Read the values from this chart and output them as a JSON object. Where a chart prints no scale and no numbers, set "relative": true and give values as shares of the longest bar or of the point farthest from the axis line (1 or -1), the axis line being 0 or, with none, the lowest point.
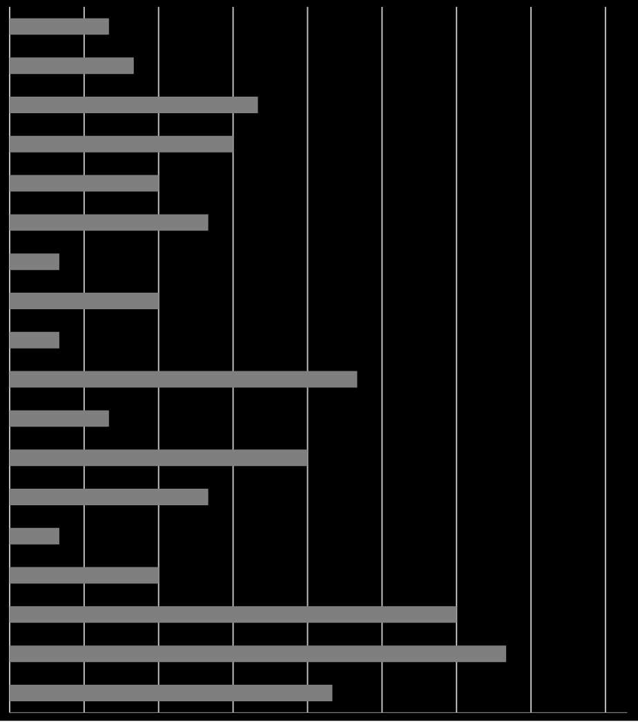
{
  "chart_data": {
    "type": "bar",
    "orientation": "horizontal",
    "relative": true,
    "grid": "x",
    "color": "#7f7f7f",
    "categories": [
      null,
      null,
      null,
      null,
      null,
      null,
      null,
      null,
      null,
      null,
      null,
      null,
      null,
      null,
      null,
      null,
      null,
      null
    ],
    "values": [
      0.2,
      0.25,
      0.5,
      0.45,
      0.3,
      0.4,
      0.1,
      0.3,
      0.1,
      0.7,
      0.2,
      0.6,
      0.4,
      0.1,
      0.3,
      0.9,
      1,
      0.65
    ]
  }
}
